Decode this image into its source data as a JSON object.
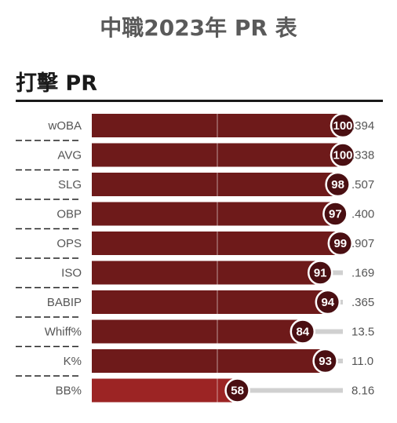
{
  "title": "中職2023年 PR 表",
  "section_title": "打擊 PR",
  "chart_data": {
    "type": "bar",
    "orientation": "horizontal",
    "xlim": [
      0,
      100
    ],
    "categories": [
      "wOBA",
      "AVG",
      "SLG",
      "OBP",
      "OPS",
      "ISO",
      "BABIP",
      "Whiff%",
      "K%",
      "BB%"
    ],
    "values": [
      100,
      100,
      98,
      97,
      99,
      91,
      94,
      84,
      93,
      58
    ],
    "stat_values": [
      ".394",
      ".338",
      ".507",
      ".400",
      ".907",
      ".169",
      ".365",
      "13.5",
      "11.0",
      "8.16"
    ],
    "colors": {
      "bar": "#6e1a1a",
      "bar_last": "#9c2424",
      "track": "#d0d0d0",
      "circle": "#4a0f12"
    }
  }
}
